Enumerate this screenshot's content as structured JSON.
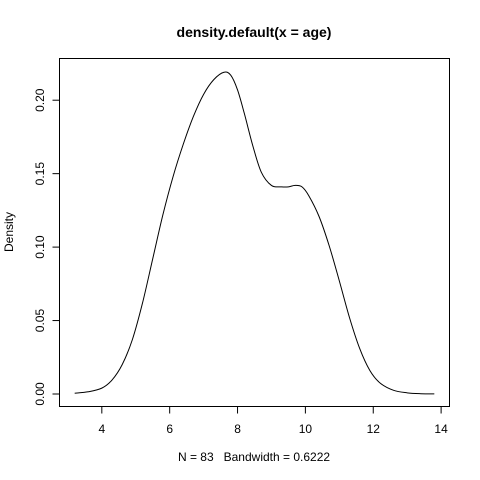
{
  "chart_data": {
    "type": "line",
    "title": "density.default(x = age)",
    "xlabel": "N = 83   Bandwidth = 0.6222",
    "ylabel": "Density",
    "xlim": [
      3.0,
      14.0
    ],
    "ylim": [
      0.0,
      0.22
    ],
    "xticks": [
      4,
      6,
      8,
      10,
      12,
      14
    ],
    "xtick_labels": [
      "4",
      "6",
      "8",
      "10",
      "12",
      "14"
    ],
    "yticks": [
      0.0,
      0.05,
      0.1,
      0.15,
      0.2
    ],
    "ytick_labels": [
      "0.00",
      "0.05",
      "0.10",
      "0.15",
      "0.20"
    ],
    "grid": false,
    "legend": "none",
    "series": [
      {
        "x": [
          3.2,
          3.6,
          4.0,
          4.3,
          4.6,
          4.9,
          5.2,
          5.5,
          5.8,
          6.1,
          6.4,
          6.7,
          7.0,
          7.3,
          7.6,
          7.8,
          8.0,
          8.2,
          8.45,
          8.7,
          9.0,
          9.3,
          9.5,
          9.7,
          9.9,
          10.1,
          10.4,
          10.7,
          11.0,
          11.3,
          11.6,
          11.9,
          12.2,
          12.6,
          13.0,
          13.4,
          13.8
        ],
        "y": [
          0.0005,
          0.0015,
          0.004,
          0.0095,
          0.02,
          0.037,
          0.062,
          0.092,
          0.122,
          0.148,
          0.17,
          0.189,
          0.204,
          0.214,
          0.219,
          0.217,
          0.207,
          0.191,
          0.169,
          0.151,
          0.142,
          0.141,
          0.141,
          0.142,
          0.141,
          0.135,
          0.121,
          0.101,
          0.077,
          0.052,
          0.031,
          0.016,
          0.0075,
          0.0025,
          0.0008,
          0.0002,
          0.0001
        ]
      }
    ]
  }
}
